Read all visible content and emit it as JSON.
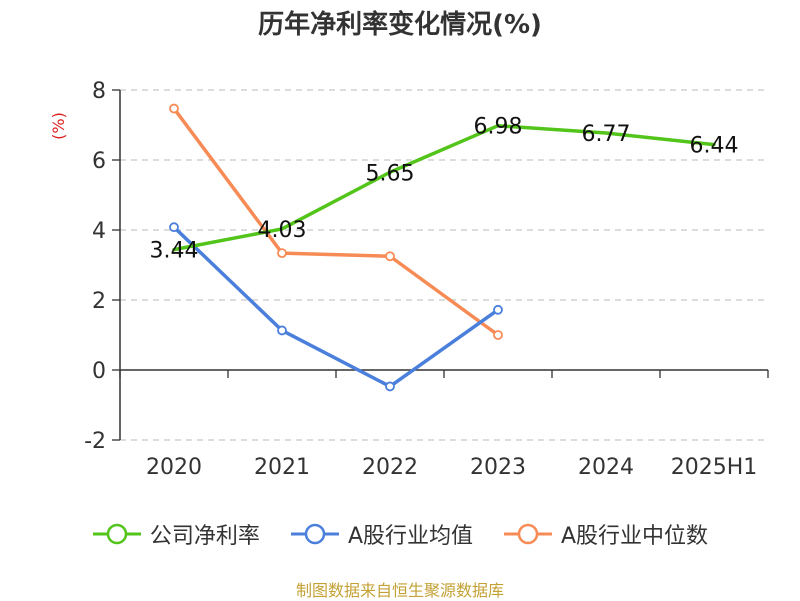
{
  "chart_data": {
    "type": "line",
    "title": "历年净利率变化情况(%)",
    "ylabel": "(%)",
    "categories": [
      "2020",
      "2021",
      "2022",
      "2023",
      "2024",
      "2025H1"
    ],
    "ylim": [
      -2,
      8
    ],
    "yticks": [
      "8",
      "6",
      "4",
      "2",
      "0",
      "-2"
    ],
    "grid": true,
    "legend_position": "bottom",
    "series": [
      {
        "name": "公司净利率",
        "color": "#52c41a",
        "values": [
          3.44,
          4.03,
          5.65,
          6.98,
          6.77,
          6.44
        ],
        "labels": [
          "3.44",
          "4.03",
          "5.65",
          "6.98",
          "6.77",
          "6.44"
        ],
        "markers": false
      },
      {
        "name": "A股行业均值",
        "color": "#4a7fdb",
        "values": [
          4.08,
          1.13,
          -0.47,
          1.72,
          null,
          null
        ],
        "markers": true
      },
      {
        "name": "A股行业中位数",
        "color": "#f78b55",
        "values": [
          7.47,
          3.34,
          3.25,
          1.0,
          null,
          null
        ],
        "markers": true
      }
    ],
    "source": "制图数据来自恒生聚源数据库"
  }
}
